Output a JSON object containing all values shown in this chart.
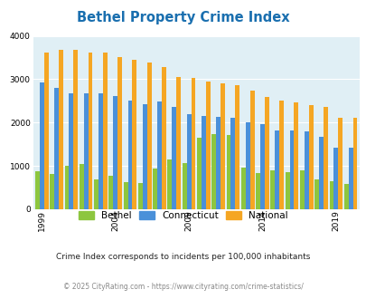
{
  "title": "Bethel Property Crime Index",
  "title_color": "#1a6faf",
  "years": [
    1999,
    2000,
    2001,
    2002,
    2003,
    2004,
    2005,
    2006,
    2007,
    2008,
    2009,
    2010,
    2011,
    2012,
    2013,
    2014,
    2015,
    2016,
    2017,
    2018,
    2019,
    2020
  ],
  "bethel": [
    880,
    820,
    1010,
    1050,
    680,
    780,
    620,
    600,
    940,
    1140,
    1060,
    1650,
    1730,
    1720,
    960,
    840,
    900,
    850,
    900,
    700,
    640,
    590
  ],
  "connecticut": [
    2920,
    2790,
    2680,
    2680,
    2680,
    2610,
    2510,
    2430,
    2490,
    2360,
    2190,
    2160,
    2140,
    2120,
    2010,
    1960,
    1820,
    1810,
    1800,
    1680,
    1430,
    1430
  ],
  "national": [
    3620,
    3670,
    3670,
    3620,
    3620,
    3520,
    3440,
    3380,
    3290,
    3050,
    3020,
    2950,
    2910,
    2870,
    2730,
    2600,
    2510,
    2460,
    2400,
    2360,
    2110,
    2110
  ],
  "bethel_color": "#8dc63f",
  "connecticut_color": "#4a90d9",
  "national_color": "#f5a623",
  "bg_color": "#e0eff5",
  "ylim": [
    0,
    4000
  ],
  "yticks": [
    0,
    1000,
    2000,
    3000,
    4000
  ],
  "xlabel_ticks": [
    1999,
    2004,
    2009,
    2014,
    2019
  ],
  "subtitle": "Crime Index corresponds to incidents per 100,000 inhabitants",
  "subtitle_color": "#222222",
  "footer": "© 2025 CityRating.com - https://www.cityrating.com/crime-statistics/",
  "footer_color": "#888888",
  "legend_labels": [
    "Bethel",
    "Connecticut",
    "National"
  ]
}
